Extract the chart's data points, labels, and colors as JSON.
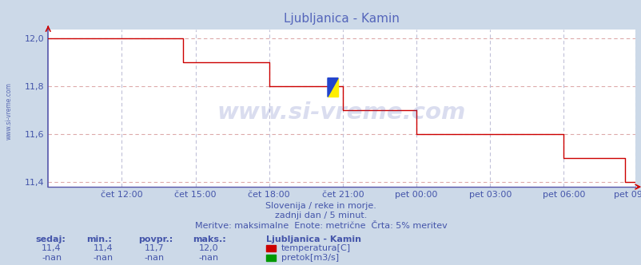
{
  "title": "Ljubljanica - Kamin",
  "background_color": "#ccd9e8",
  "plot_bg_color": "#ffffff",
  "line_color": "#cc0000",
  "grid_color_h": "#e8a0a0",
  "grid_color_v": "#c8c8d8",
  "axis_left_color": "#5555aa",
  "axis_bottom_color": "#5555aa",
  "text_color": "#4455aa",
  "title_color": "#5566bb",
  "watermark_text": "www.si-vreme.com",
  "watermark_color": "#3344aa",
  "watermark_alpha": 0.18,
  "left_text": "www.si-vreme.com",
  "subtitle_lines": [
    "Slovenija / reke in morje.",
    "zadnji dan / 5 minut.",
    "Meritve: maksimalne  Enote: metrične  Črta: 5% meritev"
  ],
  "yticks": [
    11.4,
    11.6,
    11.8,
    12.0
  ],
  "ylim": [
    11.38,
    12.04
  ],
  "xtick_labels": [
    "čet 12:00",
    "čet 15:00",
    "čet 18:00",
    "čet 21:00",
    "pet 00:00",
    "pet 03:00",
    "pet 06:00",
    "pet 09:00"
  ],
  "stats_headers": [
    "sedaj:",
    "min.:",
    "povpr.:",
    "maks.:"
  ],
  "stats_values_temp": [
    "11,4",
    "11,4",
    "11,7",
    "12,0"
  ],
  "stats_values_flow": [
    "-nan",
    "-nan",
    "-nan",
    "-nan"
  ],
  "legend_title": "Ljubljanica - Kamin",
  "legend_items": [
    {
      "label": "temperatura[C]",
      "color": "#cc0000"
    },
    {
      "label": "pretok[m3/s]",
      "color": "#009900"
    }
  ],
  "n_steps": 288,
  "xtick_positions": [
    36,
    72,
    108,
    144,
    180,
    216,
    252,
    287
  ],
  "step_data": [
    {
      "start": 0,
      "end": 66,
      "val": 12.0
    },
    {
      "start": 66,
      "end": 108,
      "val": 11.9
    },
    {
      "start": 108,
      "end": 144,
      "val": 11.8
    },
    {
      "start": 144,
      "end": 180,
      "val": 11.7
    },
    {
      "start": 180,
      "end": 252,
      "val": 11.6
    },
    {
      "start": 252,
      "end": 282,
      "val": 11.5
    },
    {
      "start": 282,
      "end": 285,
      "val": 11.4
    },
    {
      "start": 285,
      "end": 288,
      "val": 11.4
    }
  ]
}
